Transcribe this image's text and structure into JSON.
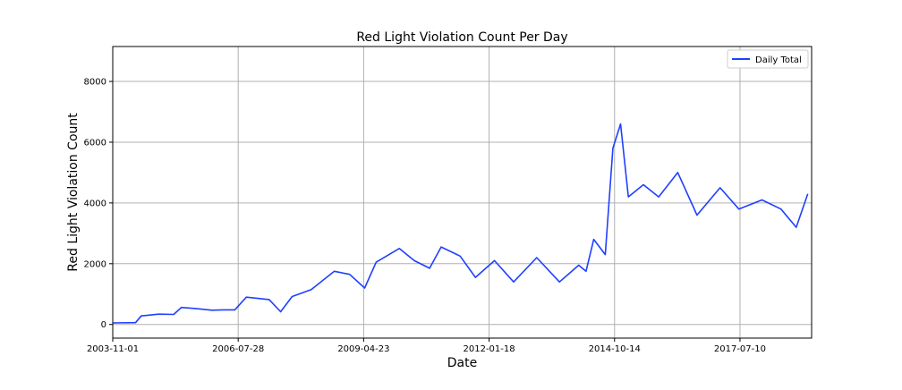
{
  "chart_data": {
    "type": "line",
    "title": "Red Light Violation Count Per Day",
    "xlabel": "Date",
    "ylabel": "Red Light Violation Count",
    "x_range": [
      "2003-11-01",
      "2019-02-01"
    ],
    "ylim": [
      -450,
      9150
    ],
    "x_tick_labels": [
      "2003-11-01",
      "2006-07-28",
      "2009-04-23",
      "2012-01-18",
      "2014-10-14",
      "2017-07-10"
    ],
    "y_ticks": [
      0,
      2000,
      4000,
      6000,
      8000
    ],
    "grid": true,
    "legend_position": "upper right",
    "series": [
      {
        "name": "Daily Total",
        "color": "#1f3fff",
        "points": [
          [
            "2003-11-01",
            50
          ],
          [
            "2004-05-01",
            60
          ],
          [
            "2004-06-15",
            280
          ],
          [
            "2004-11-01",
            340
          ],
          [
            "2005-03-01",
            330
          ],
          [
            "2005-05-01",
            560
          ],
          [
            "2005-09-01",
            520
          ],
          [
            "2006-01-01",
            470
          ],
          [
            "2006-04-01",
            480
          ],
          [
            "2006-07-01",
            480
          ],
          [
            "2006-10-01",
            900
          ],
          [
            "2007-04-01",
            820
          ],
          [
            "2007-07-01",
            420
          ],
          [
            "2007-10-01",
            920
          ],
          [
            "2008-03-01",
            1150
          ],
          [
            "2008-09-01",
            1750
          ],
          [
            "2009-01-01",
            1650
          ],
          [
            "2009-05-01",
            1200
          ],
          [
            "2009-08-01",
            2050
          ],
          [
            "2010-02-01",
            2500
          ],
          [
            "2010-06-01",
            2100
          ],
          [
            "2010-10-01",
            1850
          ],
          [
            "2011-01-01",
            2550
          ],
          [
            "2011-06-01",
            2250
          ],
          [
            "2011-10-01",
            1550
          ],
          [
            "2012-03-01",
            2100
          ],
          [
            "2012-08-01",
            1400
          ],
          [
            "2013-02-01",
            2200
          ],
          [
            "2013-08-01",
            1400
          ],
          [
            "2014-01-01",
            1950
          ],
          [
            "2014-03-01",
            1750
          ],
          [
            "2014-05-01",
            2800
          ],
          [
            "2014-08-01",
            2300
          ],
          [
            "2014-10-01",
            5800
          ],
          [
            "2014-12-01",
            6600
          ],
          [
            "2015-02-01",
            4200
          ],
          [
            "2015-06-01",
            4600
          ],
          [
            "2015-10-01",
            4200
          ],
          [
            "2016-03-01",
            5000
          ],
          [
            "2016-08-01",
            3600
          ],
          [
            "2017-02-01",
            4500
          ],
          [
            "2017-07-01",
            3800
          ],
          [
            "2018-01-01",
            4100
          ],
          [
            "2018-06-01",
            3800
          ],
          [
            "2018-10-01",
            3200
          ],
          [
            "2019-01-01",
            4300
          ]
        ]
      }
    ]
  }
}
